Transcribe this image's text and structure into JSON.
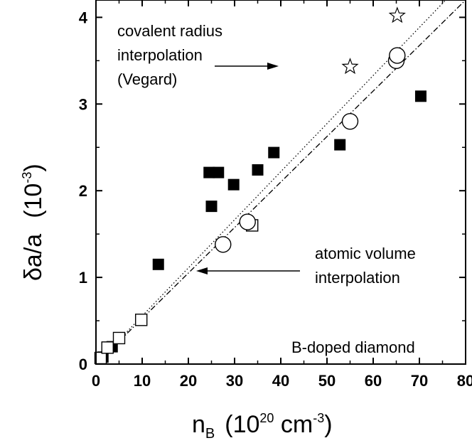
{
  "chart_data": {
    "type": "scatter",
    "xlabel": {
      "base": "n",
      "base_sub": "B",
      "open": "(10",
      "exp": "20",
      "unit": " cm",
      "unit_exp": "-3",
      "close": ")"
    },
    "ylabel": {
      "main": "δa/a",
      "open": "(10",
      "exp": "-3",
      "close": ")"
    },
    "xlim": [
      0,
      80
    ],
    "ylim": [
      0,
      4.2
    ],
    "xticks": [
      0,
      10,
      20,
      30,
      40,
      50,
      60,
      70,
      80
    ],
    "xtick_labels": [
      "0",
      "10",
      "20",
      "30",
      "40",
      "50",
      "60",
      "70",
      "80"
    ],
    "yticks": [
      0,
      1,
      2,
      3,
      4
    ],
    "ytick_labels": [
      "0",
      "1",
      "2",
      "3",
      "4"
    ],
    "grid": false,
    "annotations": [
      {
        "key": "vegard_1",
        "text": "covalent radius"
      },
      {
        "key": "vegard_2",
        "text": "interpolation"
      },
      {
        "key": "vegard_3",
        "text": "(Vegard)"
      },
      {
        "key": "atomic_1",
        "text": "atomic volume"
      },
      {
        "key": "atomic_2",
        "text": "interpolation"
      },
      {
        "key": "sample",
        "text": "B-doped diamond"
      }
    ],
    "series": [
      {
        "marker": "filled-square",
        "x": [
          1.5,
          3.5,
          13.5,
          24.5,
          25,
          26.5,
          29.8,
          35,
          38.5,
          52.8,
          70.3
        ],
        "y": [
          0.08,
          0.2,
          1.15,
          2.21,
          1.82,
          2.21,
          2.07,
          2.24,
          2.44,
          2.53,
          3.09
        ]
      },
      {
        "marker": "open-square",
        "x": [
          1.0,
          2.5,
          5,
          9.8,
          33.8
        ],
        "y": [
          0.07,
          0.19,
          0.3,
          0.51,
          1.6
        ]
      },
      {
        "marker": "open-circle",
        "x": [
          27.5,
          32.8,
          55,
          65,
          65.2
        ],
        "y": [
          1.38,
          1.64,
          2.8,
          3.5,
          3.56
        ]
      },
      {
        "marker": "star",
        "x": [
          55,
          65.2
        ],
        "y": [
          3.43,
          4.02
        ]
      }
    ],
    "lines": [
      {
        "style": "dotted",
        "x": [
          0,
          75.7
        ],
        "y": [
          0,
          4.2
        ]
      },
      {
        "style": "dash-dot",
        "x": [
          0,
          80
        ],
        "y": [
          0,
          4.2
        ]
      }
    ]
  }
}
